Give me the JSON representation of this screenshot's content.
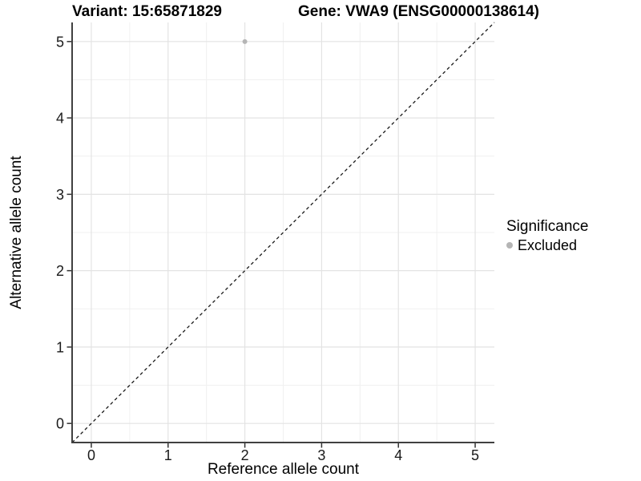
{
  "header": {
    "variant_title": "Variant: 15:65871829",
    "gene_title": "Gene: VWA9 (ENSG00000138614)"
  },
  "chart_data": {
    "type": "scatter",
    "xlabel": "Reference allele count",
    "ylabel": "Alternative allele count",
    "xlim": [
      -0.25,
      5.25
    ],
    "ylim": [
      -0.25,
      5.25
    ],
    "x_ticks": [
      0,
      1,
      2,
      3,
      4,
      5
    ],
    "y_ticks": [
      0,
      1,
      2,
      3,
      4,
      5
    ],
    "x_minor_ticks": [
      0.5,
      1.5,
      2.5,
      3.5,
      4.5
    ],
    "y_minor_ticks": [
      0.5,
      1.5,
      2.5,
      3.5,
      4.5
    ],
    "grid": true,
    "identity_line": {
      "style": "dashed",
      "color": "#1a1a1a",
      "from": [
        -0.25,
        -0.25
      ],
      "to": [
        5.25,
        5.25
      ]
    },
    "series": [
      {
        "name": "Excluded",
        "color": "#b5b5b5",
        "points": [
          {
            "x": 2,
            "y": 5
          }
        ]
      }
    ],
    "legend": {
      "title": "Significance",
      "position": "right",
      "items": [
        {
          "label": "Excluded",
          "color": "#b5b5b5"
        }
      ]
    },
    "colors": {
      "grid_major": "#e3e3e3",
      "grid_minor": "#f0f0f0",
      "axis_line": "#404040",
      "tick_mark": "#333333",
      "tick_label": "#1a1a1a"
    }
  }
}
